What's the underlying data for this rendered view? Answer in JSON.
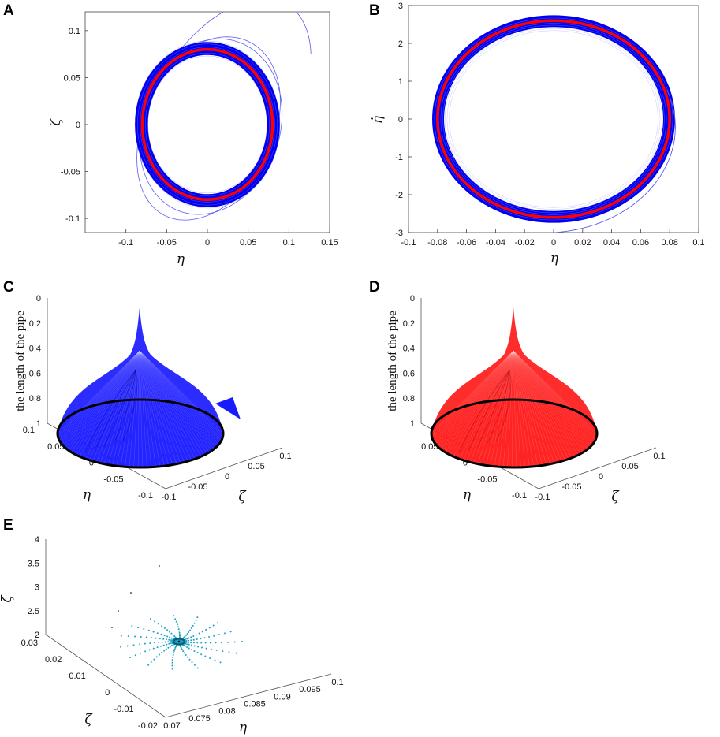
{
  "colors": {
    "orbit": "#0000ee",
    "orbit_light": "#5b5bf0",
    "limit_cycle": "#ff0000",
    "edge": "#000000",
    "cone_blue": "#1a1aff",
    "cone_red": "#ff1a1a",
    "dots": "#1aa3c8"
  },
  "chart_data": [
    {
      "panel": "A",
      "type": "line",
      "xlabel": "η",
      "ylabel": "ζ",
      "xlim": [
        -0.15,
        0.15
      ],
      "ylim": [
        -0.115,
        0.12
      ],
      "xticks": [
        -0.1,
        -0.05,
        0,
        0.05,
        0.1,
        0.15
      ],
      "yticks": [
        -0.1,
        -0.05,
        0,
        0.05,
        0.1
      ],
      "xticklabels": [
        "-0.1",
        "-0.05",
        "0",
        "0.05",
        "0.1",
        "0.15"
      ],
      "yticklabels": [
        "-0.1",
        "-0.05",
        "0",
        "0.05",
        "0.1"
      ],
      "limit_cycle_radius": 0.08,
      "band": [
        0.073,
        0.089
      ]
    },
    {
      "panel": "B",
      "type": "line",
      "xlabel": "η",
      "ylabel": "η̇",
      "xlim": [
        -0.1,
        0.1
      ],
      "ylim": [
        -3,
        3
      ],
      "xticks": [
        -0.1,
        -0.08,
        -0.06,
        -0.04,
        -0.02,
        0,
        0.02,
        0.04,
        0.06,
        0.08,
        0.1
      ],
      "yticks": [
        -3,
        -2,
        -1,
        0,
        1,
        2,
        3
      ],
      "xticklabels": [
        "-0.1",
        "-0.08",
        "-0.06",
        "-0.04",
        "-0.02",
        "0",
        "0.02",
        "0.04",
        "0.06",
        "0.08",
        "0.1"
      ],
      "yticklabels": [
        "-3",
        "-2",
        "-1",
        "0",
        "1",
        "2",
        "3"
      ],
      "limit_cycle": {
        "x_amp": 0.08,
        "y_amp": 2.6
      }
    },
    {
      "panel": "C",
      "type": "surface3d",
      "zlabel": "the length of the pipe",
      "xlabel": "η",
      "ylabel": "ζ",
      "zticks": [
        "0",
        "0.2",
        "0.4",
        "0.6",
        "0.8",
        "1"
      ],
      "xticks": [
        "0.1",
        "0.05",
        "0",
        "-0.05",
        "-0.1"
      ],
      "yticks": [
        "-0.1",
        "-0.05",
        "0",
        "0.05",
        "0.1"
      ]
    },
    {
      "panel": "D",
      "type": "surface3d",
      "zlabel": "the length of the pipe",
      "xlabel": "η",
      "ylabel": "ζ",
      "zticks": [
        "0",
        "0.2",
        "0.4",
        "0.6",
        "0.8",
        "1"
      ],
      "xticks": [
        "0.05",
        "0",
        "-0.05",
        "-0.1"
      ],
      "yticks": [
        "-0.1",
        "-0.05",
        "0",
        "0.05",
        "0.1"
      ]
    },
    {
      "panel": "E",
      "type": "scatter3d",
      "zlabel": "ζ̇",
      "xlabel": "η",
      "ylabel": "ζ",
      "zticks": [
        "2",
        "2.5",
        "3",
        "3.5",
        "4"
      ],
      "yticks": [
        "0.03",
        "0.02",
        "0.01",
        "0",
        "-0.01",
        "-0.02"
      ],
      "xticks": [
        "0.07",
        "0.075",
        "0.08",
        "0.085",
        "0.09",
        "0.095",
        "0.1"
      ]
    }
  ]
}
